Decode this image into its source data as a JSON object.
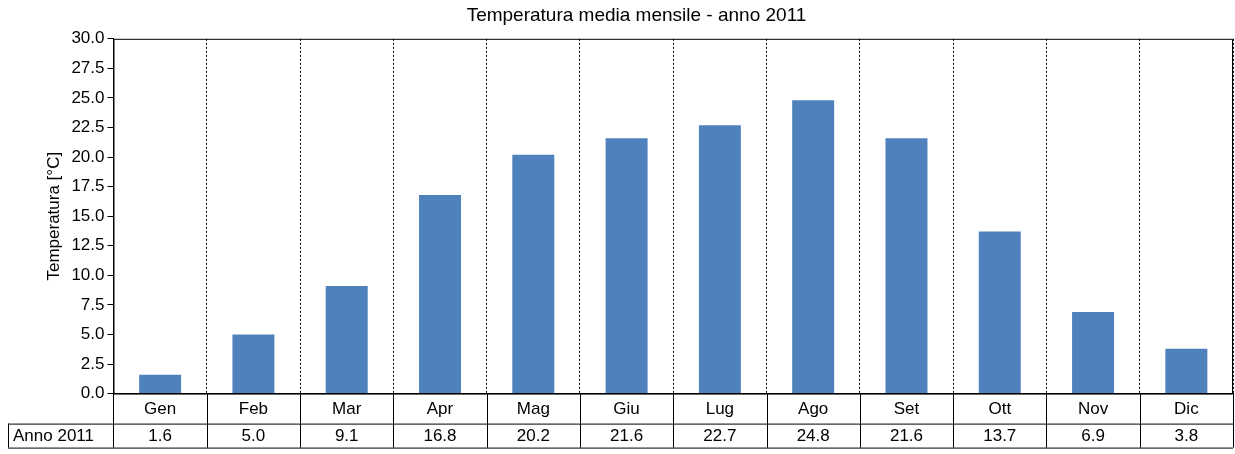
{
  "chart_data": {
    "type": "bar",
    "title": "Temperatura media mensile - anno 2011",
    "ylabel": "Temperatura [°C]",
    "categories": [
      "Gen",
      "Feb",
      "Mar",
      "Apr",
      "Mag",
      "Giu",
      "Lug",
      "Ago",
      "Set",
      "Ott",
      "Nov",
      "Dic"
    ],
    "series": [
      {
        "name": "Anno 2011",
        "color": "#4f81bd",
        "values": [
          1.6,
          5.0,
          9.1,
          16.8,
          20.2,
          21.6,
          22.7,
          24.8,
          21.6,
          13.7,
          6.9,
          3.8
        ],
        "value_labels": [
          "1.6",
          "5.0",
          "9.1",
          "16.8",
          "20.2",
          "21.6",
          "22.7",
          "24.8",
          "21.6",
          "13.7",
          "6.9",
          "3.8"
        ]
      }
    ],
    "ylim": [
      0,
      30
    ],
    "yticks": [
      {
        "value": 0,
        "label": "0.0"
      },
      2.5,
      {
        "value": 5,
        "label": "5.0"
      },
      7.5,
      {
        "value": 10,
        "label": "10.0"
      },
      12.5,
      {
        "value": 15,
        "label": "15.0"
      },
      17.5,
      {
        "value": 20,
        "label": "20.0"
      },
      22.5,
      {
        "value": 25,
        "label": "25.0"
      },
      27.5,
      {
        "value": 30,
        "label": "30.0"
      }
    ],
    "grid": "x",
    "legend": false
  }
}
